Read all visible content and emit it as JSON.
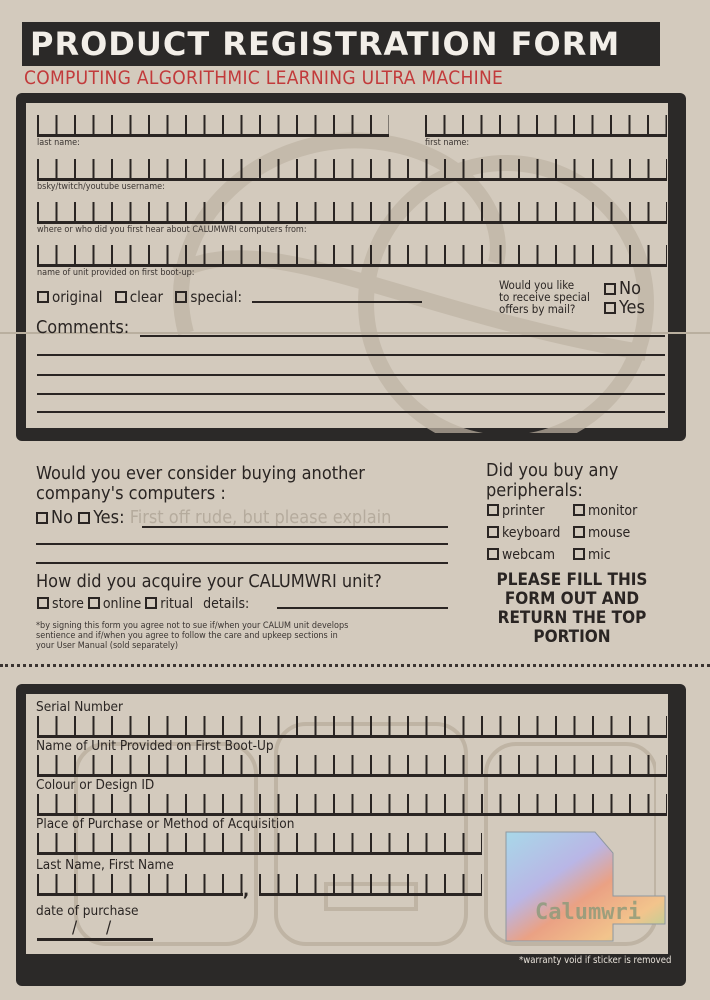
{
  "header": {
    "title": "PRODUCT REGISTRATION FORM",
    "subtitle": "COMPUTING ALGORITHMIC LEARNING ULTRA MACHINE"
  },
  "top_form": {
    "last_name": "last name:",
    "first_name": "first name:",
    "username": "bsky/twitch/youtube username:",
    "heard_from": "where or who did you first hear about CALUMWRI computers from:",
    "unit_name": "name of unit provided on first boot-up:",
    "variants": [
      "original",
      "clear",
      "special:"
    ],
    "mail_question": [
      "Would you like",
      "to receive special",
      "offers by mail?"
    ],
    "mail_options": [
      "No",
      "Yes"
    ],
    "comments": "Comments:"
  },
  "middle": {
    "other_company_q": [
      "Would you ever consider buying another",
      "company's computers :"
    ],
    "other_options": [
      "No",
      "Yes:"
    ],
    "other_placeholder": "First off rude, but please explain",
    "acquire_q": "How did you acquire your CALUMWRI unit?",
    "acquire_options": [
      "store",
      "online",
      "ritual"
    ],
    "details": "details:",
    "disclaimer": [
      "*by signing this form you agree not to sue if/when your CALUM unit develops",
      "sentience and if/when you agree to follow the care and upkeep sections in",
      "your User Manual (sold separately)"
    ],
    "peripherals_q": [
      "Did you buy any",
      "peripherals:"
    ],
    "peripherals": [
      "printer",
      "monitor",
      "keyboard",
      "mouse",
      "webcam",
      "mic"
    ],
    "return_note": [
      "PLEASE FILL THIS",
      "FORM OUT AND",
      "RETURN THE TOP",
      "PORTION"
    ]
  },
  "bottom_form": {
    "serial": "Serial Number",
    "unit_name": "Name of Unit Provided on First Boot-Up",
    "colour": "Colour or Design ID",
    "place": "Place of Purchase or Method of Acquisition",
    "name": "Last Name, First Name",
    "comma": ",",
    "date": "date of purchase",
    "date_sep": "/",
    "sticker_logo": "Calumwri",
    "warranty": "*warranty void if sticker is removed"
  },
  "colors": {
    "paper": "#d3cabd",
    "ink": "#2a2523",
    "accent": "#c23a3b"
  }
}
